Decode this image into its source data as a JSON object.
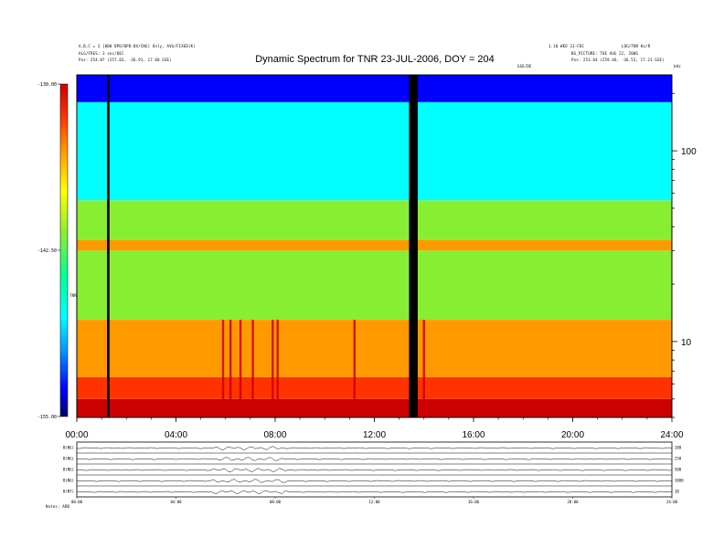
{
  "header": {
    "title": "Dynamic Spectrum for TNR 23-JUL-2006, DOY = 204",
    "left_line1": "A,B,C = 3 [000 BPD/BPD-BX/CNG] Only, AVG/FIXED(K)",
    "left_line2": "ALG/FRES: 3 sec/DEC",
    "left_line3": "Pos:   254.07 (257.03, -36.91, 17.68 GSE)",
    "right_line1": "1.10 WED 23-FDC",
    "right_line2": "LOG/TNR Hz/R",
    "right_line3": "BG_PICTURE: TUE AUG 22, 2006",
    "right_line4": "Pos:   253.64 (259.46, -36.53, 17.21 GSE)",
    "cbar_unit": "TNR",
    "unit_label": "kHz",
    "small_label": "GSE/DE"
  },
  "chart_data": {
    "type": "heatmap",
    "title": "Dynamic Spectrum for TNR 23-JUL-2006, DOY = 204",
    "x_ticks": [
      "00:00",
      "04:00",
      "08:00",
      "12:00",
      "16:00",
      "20:00",
      "24:00"
    ],
    "x_range_hours": [
      0,
      24
    ],
    "y_scale": "log",
    "y_range_khz": [
      4,
      250
    ],
    "y_ticks": [
      "100",
      "10"
    ],
    "colorbar": {
      "ticks": [
        "-130.00",
        "-142.50",
        "-155.00"
      ],
      "range": [
        -155.0,
        -130.0
      ],
      "colormap": [
        "#cc0000",
        "#ff3300",
        "#ff9900",
        "#ffff00",
        "#88ee33",
        "#00ff99",
        "#00ffff",
        "#0099ff",
        "#0000ff",
        "#000066"
      ]
    },
    "bands_khz": [
      {
        "from": 4,
        "to": 5,
        "level": -130.5
      },
      {
        "from": 5,
        "to": 6.5,
        "level": -132.5
      },
      {
        "from": 6.5,
        "to": 13,
        "level": -135.5
      },
      {
        "from": 13,
        "to": 30,
        "level": -140.0
      },
      {
        "from": 30,
        "to": 34,
        "level": -134.5
      },
      {
        "from": 34,
        "to": 55,
        "level": -141.5
      },
      {
        "from": 55,
        "to": 70,
        "level": -145.5
      },
      {
        "from": 70,
        "to": 180,
        "level": -147.5
      },
      {
        "from": 180,
        "to": 250,
        "level": -151.5
      }
    ],
    "data_gaps_hours": [
      [
        1.22,
        1.32
      ],
      [
        13.4,
        13.75
      ]
    ],
    "bursts_hours": [
      5.9,
      6.2,
      6.6,
      7.1,
      7.9,
      8.1,
      11.2,
      14.0
    ],
    "bottom_panels": [
      {
        "label": "B(NG)",
        "right": "200"
      },
      {
        "label": "B(NG)",
        "right": "250"
      },
      {
        "label": "B(NG)",
        "right": "500"
      },
      {
        "label": "B(NG)",
        "right": "1000"
      },
      {
        "label": "B(NT)",
        "right": "10"
      }
    ],
    "bottom_x_ticks": [
      "00:00",
      "04:00",
      "08:00",
      "12:00",
      "16:00",
      "20:00",
      "24:00"
    ]
  },
  "footer": {
    "left_label": "Notes:   ARB"
  }
}
